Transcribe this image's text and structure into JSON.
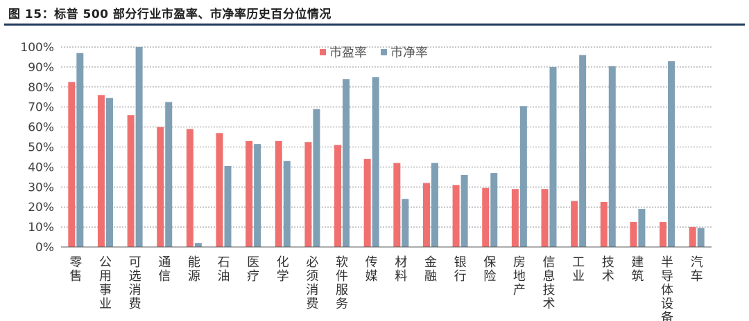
{
  "title": "图 15：标普 500 部分行业市盈率、市净率历史百分位情况",
  "chart_data": {
    "type": "bar",
    "title": "",
    "xlabel": "",
    "ylabel": "",
    "ylim": [
      0,
      100
    ],
    "yticks": [
      "0%",
      "10%",
      "20%",
      "30%",
      "40%",
      "50%",
      "60%",
      "70%",
      "80%",
      "90%",
      "100%"
    ],
    "grid": true,
    "legend_position": "top-center",
    "categories": [
      "零售",
      "公用事业",
      "可选消费",
      "通信",
      "能源",
      "石油",
      "医疗",
      "化学",
      "必须消费",
      "软件服务",
      "传媒",
      "材料",
      "金融",
      "银行",
      "保险",
      "房地产",
      "信息技术",
      "工业",
      "技术",
      "建筑",
      "半导体设备",
      "汽车"
    ],
    "series": [
      {
        "name": "市盈率",
        "color": "#f07070",
        "values": [
          82.5,
          76,
          66,
          60,
          59,
          57,
          53,
          53,
          52.5,
          51,
          44,
          42,
          32,
          31,
          29.5,
          29,
          29,
          23,
          22.5,
          12.5,
          12.5,
          10
        ]
      },
      {
        "name": "市净率",
        "color": "#7f9fb5",
        "values": [
          97,
          74.5,
          100,
          72.5,
          2,
          40.5,
          51.5,
          43,
          69,
          84,
          85,
          24,
          42,
          36,
          37,
          70.5,
          90,
          96,
          90.5,
          19,
          93,
          9.5
        ]
      }
    ]
  }
}
